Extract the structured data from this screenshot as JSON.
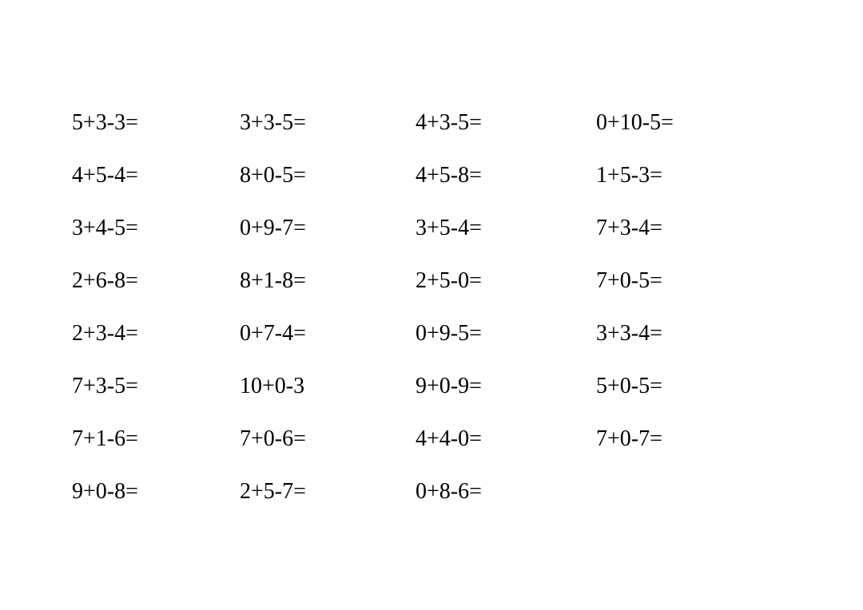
{
  "worksheet": {
    "type": "table",
    "font_family": "Times New Roman",
    "font_size_pt": 21,
    "text_color": "#000000",
    "background_color": "#ffffff",
    "columns": 4,
    "rows": [
      [
        "5+3-3=",
        "3+3-5=",
        "4+3-5=",
        "0+10-5="
      ],
      [
        "4+5-4=",
        "8+0-5=",
        "4+5-8=",
        "1+5-3="
      ],
      [
        "3+4-5=",
        "0+9-7=",
        "3+5-4=",
        "7+3-4="
      ],
      [
        "2+6-8=",
        "8+1-8=",
        "2+5-0=",
        "7+0-5="
      ],
      [
        "2+3-4=",
        "0+7-4=",
        "0+9-5=",
        "3+3-4="
      ],
      [
        "7+3-5=",
        "10+0-3",
        "9+0-9=",
        "5+0-5="
      ],
      [
        "7+1-6=",
        "7+0-6=",
        "4+4-0=",
        "7+0-7="
      ],
      [
        "9+0-8=",
        "2+5-7=",
        "0+8-6=",
        ""
      ]
    ]
  }
}
